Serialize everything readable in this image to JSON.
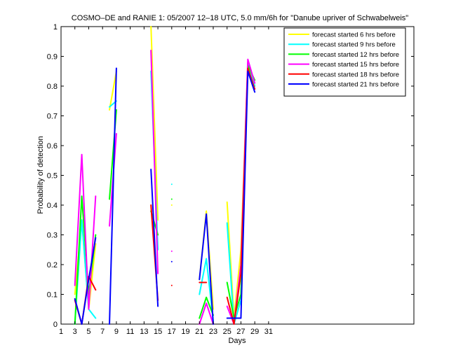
{
  "chart_data": {
    "type": "line",
    "title": "COSMO–DE and RANIE 1: 05/2007 12–18 UTC, 5.0 mm/6h for \"Danube upriver of Schwabelweis\"",
    "x_label": "Days",
    "y_label": "Probability of detection",
    "x": [
      1,
      2,
      3,
      4,
      5,
      6,
      7,
      8,
      9,
      10,
      11,
      12,
      13,
      14,
      15,
      16,
      17,
      18,
      19,
      20,
      21,
      22,
      23,
      24,
      25,
      26,
      27,
      28,
      29,
      30,
      31
    ],
    "xlim": [
      1,
      52
    ],
    "ylim": [
      0,
      1
    ],
    "xticks": [
      1,
      3,
      5,
      7,
      9,
      11,
      13,
      15,
      17,
      19,
      21,
      23,
      25,
      27,
      29,
      31
    ],
    "yticks": [
      0,
      0.1,
      0.2,
      0.3,
      0.4,
      0.5,
      0.6,
      0.7,
      0.8,
      0.9,
      1
    ],
    "legend": "upper right",
    "series": [
      {
        "name": "forecast started 6 hrs before",
        "color": "#ffff00",
        "values": [
          null,
          null,
          0.1,
          0.35,
          0.05,
          0.27,
          null,
          0.72,
          0.85,
          null,
          null,
          null,
          null,
          1.0,
          0.35,
          null,
          0.4,
          null,
          null,
          null,
          0.15,
          0.38,
          0.05,
          null,
          0.41,
          0.02,
          0.25,
          0.88,
          0.8,
          null,
          null
        ]
      },
      {
        "name": "forecast started 9 hrs before",
        "color": "#00ffff",
        "values": [
          null,
          null,
          0.0,
          0.35,
          0.05,
          0.02,
          null,
          0.73,
          0.75,
          null,
          null,
          null,
          null,
          0.85,
          0.25,
          null,
          0.47,
          null,
          null,
          null,
          0.1,
          0.22,
          0.01,
          null,
          0.34,
          0.0,
          0.08,
          0.88,
          0.8,
          null,
          null
        ]
      },
      {
        "name": "forecast started 12 hrs before",
        "color": "#00ff00",
        "values": [
          null,
          null,
          0.0,
          0.43,
          0.1,
          0.3,
          null,
          0.42,
          0.72,
          null,
          null,
          null,
          null,
          0.38,
          0.3,
          null,
          0.42,
          null,
          null,
          null,
          0.02,
          0.09,
          0.03,
          null,
          0.14,
          0.02,
          0.1,
          0.87,
          0.82,
          null,
          null
        ]
      },
      {
        "name": "forecast started 15 hrs before",
        "color": "#ff00ff",
        "values": [
          null,
          null,
          0.13,
          0.57,
          0.05,
          0.43,
          null,
          0.33,
          0.64,
          null,
          null,
          null,
          null,
          0.92,
          0.17,
          null,
          0.245,
          null,
          null,
          null,
          0.0,
          0.07,
          0.0,
          null,
          0.06,
          0.0,
          0.2,
          0.89,
          0.81,
          null,
          null
        ]
      },
      {
        "name": "forecast started 18 hrs before",
        "color": "#ff0000",
        "values": [
          null,
          null,
          0.08,
          0.0,
          0.16,
          0.115,
          null,
          null,
          null,
          null,
          null,
          null,
          null,
          0.4,
          0.08,
          null,
          0.13,
          null,
          null,
          null,
          0.14,
          0.14,
          null,
          null,
          0.09,
          0.0,
          0.17,
          0.86,
          0.79,
          null,
          null
        ]
      },
      {
        "name": "forecast started 21 hrs before",
        "color": "#0000ff",
        "values": [
          null,
          null,
          0.085,
          0.0,
          0.15,
          0.29,
          null,
          0.0,
          0.86,
          null,
          null,
          null,
          null,
          0.52,
          0.06,
          null,
          0.21,
          null,
          null,
          null,
          0.15,
          0.37,
          0.0,
          null,
          0.02,
          0.02,
          0.02,
          0.85,
          0.78,
          null,
          null
        ]
      }
    ]
  }
}
